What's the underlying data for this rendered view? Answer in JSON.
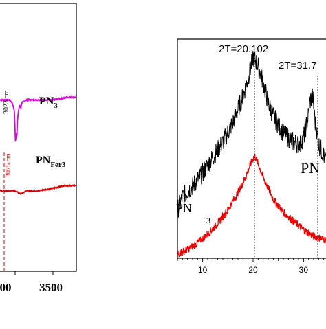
{
  "chart_data": [
    {
      "type": "line",
      "title": "",
      "xlabel": "",
      "ylabel": "",
      "x_ticks": [
        "00",
        "3500"
      ],
      "xlim": [
        2800,
        3800
      ],
      "series": [
        {
          "name": "PN3",
          "color": "#e000e0",
          "x": [
            2800,
            2880,
            2920,
            2960,
            2990,
            3005,
            3015,
            3023,
            3030,
            3045,
            3060,
            3075,
            3090,
            3150,
            3300,
            3500,
            3700,
            3800
          ],
          "y": [
            0.64,
            0.64,
            0.64,
            0.63,
            0.6,
            0.48,
            0.52,
            0.5,
            0.56,
            0.6,
            0.62,
            0.61,
            0.63,
            0.64,
            0.64,
            0.64,
            0.65,
            0.65
          ]
        },
        {
          "name": "PNFer3",
          "color": "#dd0000",
          "x": [
            2800,
            2900,
            3000,
            3075,
            3150,
            3300,
            3500,
            3650,
            3800
          ],
          "y": [
            0.3,
            0.3,
            0.3,
            0.29,
            0.3,
            0.3,
            0.31,
            0.32,
            0.32
          ]
        }
      ],
      "labels": {
        "pn3_base": "PN",
        "pn3_sub": "3",
        "pnfer3_base": "PN",
        "pnfer3_sub": "Fer3"
      },
      "annotations": [
        {
          "text": "3023 cm",
          "x": 3023,
          "color": "#000000"
        },
        {
          "text": "3075 cm",
          "x": 3075,
          "color": "#dd0000"
        }
      ],
      "colors": {
        "pn3": "#e000e0",
        "pnfer3": "#dd0000",
        "marker_line": "#dd0000"
      }
    },
    {
      "type": "line",
      "title": "",
      "xlabel": "",
      "ylabel": "",
      "xlim": [
        5,
        35
      ],
      "x_ticks": [
        10,
        20,
        30
      ],
      "peak_labels": [
        "2T=20.102",
        "2T=31.7"
      ],
      "peak_positions": [
        20.1,
        31.7
      ],
      "series": [
        {
          "name": "PN",
          "color": "#000000",
          "x": [
            5,
            6,
            8,
            10,
            12,
            14,
            16,
            18,
            19,
            20,
            21,
            22,
            23,
            24,
            26,
            28,
            29,
            30,
            30.8,
            31.3,
            31.8,
            32.3,
            33,
            35
          ],
          "y": [
            0.22,
            0.28,
            0.33,
            0.39,
            0.46,
            0.53,
            0.62,
            0.74,
            0.82,
            0.92,
            0.88,
            0.8,
            0.71,
            0.65,
            0.57,
            0.53,
            0.52,
            0.55,
            0.63,
            0.72,
            0.74,
            0.62,
            0.52,
            0.42
          ]
        },
        {
          "name": "PN",
          "color": "#ee0000",
          "x": [
            5,
            7,
            9,
            11,
            13,
            15,
            17,
            18.5,
            19.5,
            20.3,
            21,
            22,
            23,
            24,
            26,
            28,
            30,
            32,
            35
          ],
          "y": [
            0.02,
            0.04,
            0.07,
            0.11,
            0.16,
            0.22,
            0.3,
            0.37,
            0.43,
            0.47,
            0.43,
            0.37,
            0.32,
            0.27,
            0.21,
            0.17,
            0.13,
            0.1,
            0.08
          ]
        }
      ],
      "series_labels": [
        "PN",
        "PN",
        "3"
      ]
    }
  ]
}
